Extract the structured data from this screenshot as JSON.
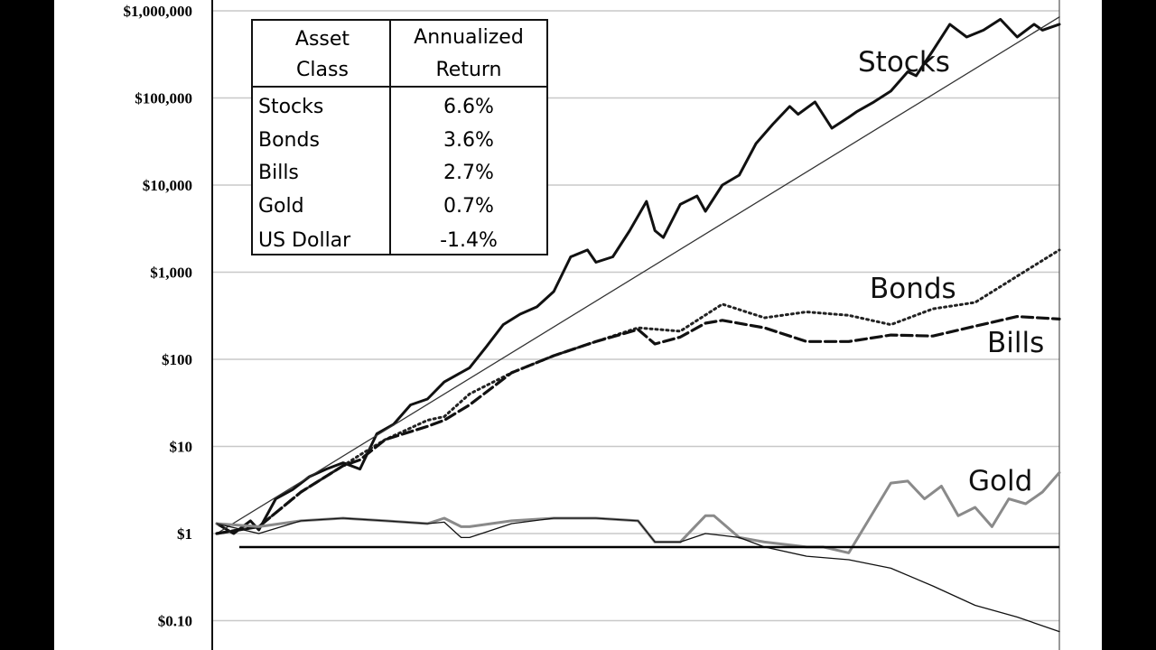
{
  "chart_data": {
    "type": "line",
    "y_scale": "log",
    "x_range": [
      0,
      100
    ],
    "ylim": [
      0.07,
      1000000
    ],
    "grid": true,
    "y_ticks": [
      {
        "value": 1000000,
        "label": "$1,000,000"
      },
      {
        "value": 100000,
        "label": "$100,000"
      },
      {
        "value": 10000,
        "label": "$10,000"
      },
      {
        "value": 1000,
        "label": "$1,000"
      },
      {
        "value": 100,
        "label": "$100"
      },
      {
        "value": 10,
        "label": "$10"
      },
      {
        "value": 1,
        "label": "$1"
      },
      {
        "value": 0.1,
        "label": "$0.10"
      }
    ],
    "series": [
      {
        "name": "Stocks",
        "x": [
          0,
          2,
          4,
          5,
          7,
          9,
          11,
          13,
          15,
          17,
          19,
          21,
          23,
          25,
          27,
          30,
          32,
          34,
          36,
          38,
          40,
          42,
          44,
          45,
          47,
          49,
          51,
          52,
          53,
          55,
          57,
          58,
          60,
          62,
          64,
          66,
          68,
          69,
          71,
          73,
          75,
          76,
          78,
          80,
          82,
          83,
          85,
          87,
          89,
          91,
          93,
          95,
          97,
          98,
          100
        ],
        "y": [
          1.3,
          1.0,
          1.4,
          1.1,
          2.5,
          3.2,
          4.5,
          5.5,
          6.5,
          5.5,
          14,
          18,
          30,
          35,
          55,
          80,
          140,
          250,
          330,
          400,
          600,
          1500,
          1800,
          1300,
          1500,
          3000,
          6500,
          3000,
          2500,
          6000,
          7500,
          5000,
          10000,
          13000,
          30000,
          50000,
          80000,
          65000,
          90000,
          45000,
          60000,
          70000,
          90000,
          120000,
          200000,
          180000,
          350000,
          700000,
          500000,
          600000,
          800000,
          500000,
          700000,
          600000,
          700000
        ],
        "stroke": "#111111",
        "style": "solid"
      },
      {
        "name": "Stocks trend",
        "x": [
          0,
          100
        ],
        "y": [
          1,
          850000
        ],
        "stroke": "#333333",
        "style": "thin"
      },
      {
        "name": "Bonds",
        "x": [
          0,
          5,
          10,
          15,
          17,
          20,
          25,
          27,
          30,
          35,
          40,
          45,
          50,
          55,
          60,
          65,
          70,
          75,
          80,
          85,
          90,
          95,
          100
        ],
        "y": [
          1,
          1.2,
          3,
          6,
          8,
          12,
          20,
          22,
          40,
          70,
          110,
          160,
          230,
          210,
          430,
          300,
          350,
          320,
          250,
          380,
          450,
          900,
          1800
        ],
        "stroke": "#222222",
        "style": "dotted"
      },
      {
        "name": "Bills",
        "x": [
          0,
          5,
          10,
          15,
          17,
          20,
          25,
          27,
          30,
          35,
          40,
          45,
          50,
          52,
          55,
          58,
          60,
          65,
          70,
          75,
          80,
          85,
          90,
          95,
          100
        ],
        "y": [
          1,
          1.2,
          3,
          6,
          7,
          12,
          17,
          20,
          30,
          70,
          110,
          160,
          220,
          150,
          180,
          260,
          280,
          230,
          160,
          160,
          190,
          185,
          240,
          310,
          290
        ],
        "stroke": "#111111",
        "style": "dashed"
      },
      {
        "name": "Gold",
        "x": [
          0,
          5,
          10,
          15,
          20,
          25,
          27,
          29,
          30,
          35,
          40,
          45,
          50,
          52,
          55,
          58,
          59,
          62,
          65,
          70,
          72,
          75,
          80,
          82,
          84,
          86,
          88,
          90,
          92,
          94,
          96,
          98,
          100
        ],
        "y": [
          1.3,
          1.2,
          1.4,
          1.5,
          1.4,
          1.3,
          1.5,
          1.2,
          1.2,
          1.4,
          1.5,
          1.5,
          1.4,
          0.8,
          0.8,
          1.6,
          1.6,
          0.9,
          0.8,
          0.7,
          0.7,
          0.6,
          3.8,
          4.0,
          2.5,
          3.5,
          1.6,
          2.0,
          1.2,
          2.5,
          2.2,
          3.0,
          5.0
        ],
        "stroke": "#8a8a8a",
        "style": "solid"
      },
      {
        "name": "US Dollar",
        "x": [
          0,
          5,
          10,
          15,
          20,
          25,
          27,
          29,
          30,
          35,
          40,
          45,
          50,
          52,
          55,
          58,
          60,
          62,
          65,
          70,
          75,
          80,
          85,
          90,
          95,
          100
        ],
        "y": [
          1.3,
          1.0,
          1.4,
          1.5,
          1.4,
          1.3,
          1.35,
          0.9,
          0.9,
          1.3,
          1.5,
          1.5,
          1.4,
          0.8,
          0.8,
          1.0,
          0.95,
          0.9,
          0.7,
          0.55,
          0.5,
          0.4,
          0.25,
          0.15,
          0.11,
          0.075
        ],
        "stroke": "#111111",
        "style": "thin"
      }
    ],
    "reference_line": {
      "value": 0.7
    },
    "labels": {
      "stocks": "Stocks",
      "bonds": "Bonds",
      "bills": "Bills",
      "gold": "Gold"
    },
    "table": {
      "headers": [
        [
          "Asset",
          "Class"
        ],
        [
          "Annualized",
          "Return"
        ]
      ],
      "rows": [
        [
          "Stocks",
          "6.6%"
        ],
        [
          "Bonds",
          "3.6%"
        ],
        [
          "Bills",
          "2.7%"
        ],
        [
          "Gold",
          "0.7%"
        ],
        [
          "US Dollar",
          "-1.4%"
        ]
      ]
    }
  }
}
